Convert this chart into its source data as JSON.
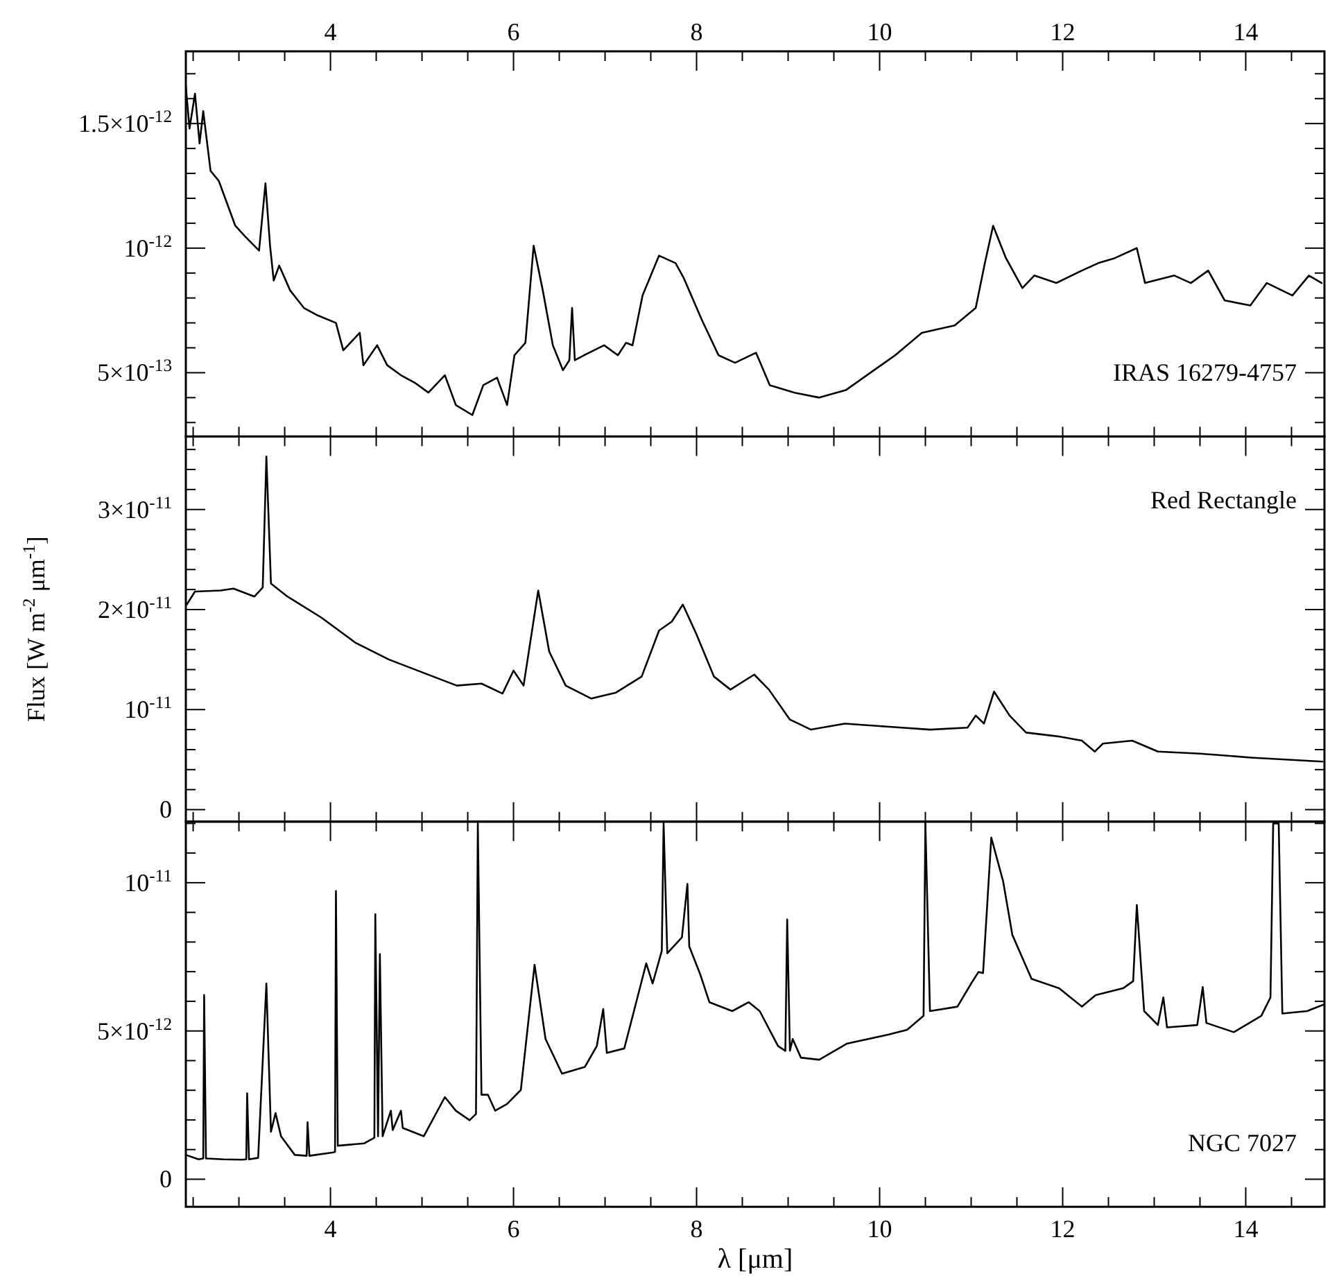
{
  "chart_data": [
    {
      "type": "line",
      "tick_labels": "y",
      "xlim": [
        2.42,
        14.86
      ],
      "ylim": [
        2.44e-13,
        1.79e-12
      ],
      "xticks": [
        {
          "value": 2.5,
          "label": null
        },
        {
          "value": 3,
          "label": null
        },
        {
          "value": 3.5,
          "label": null
        },
        {
          "value": 4,
          "label": null
        },
        {
          "value": 4.5,
          "label": null
        },
        {
          "value": 5,
          "label": null
        },
        {
          "value": 5.5,
          "label": null
        },
        {
          "value": 6,
          "label": null
        },
        {
          "value": 6.5,
          "label": null
        },
        {
          "value": 7,
          "label": null
        },
        {
          "value": 7.5,
          "label": null
        },
        {
          "value": 8,
          "label": null
        },
        {
          "value": 8.5,
          "label": null
        },
        {
          "value": 9,
          "label": null
        },
        {
          "value": 9.5,
          "label": null
        },
        {
          "value": 10,
          "label": null
        },
        {
          "value": 10.5,
          "label": null
        },
        {
          "value": 11,
          "label": null
        },
        {
          "value": 11.5,
          "label": null
        },
        {
          "value": 12,
          "label": null
        },
        {
          "value": 12.5,
          "label": null
        },
        {
          "value": 13,
          "label": null
        },
        {
          "value": 13.5,
          "label": null
        },
        {
          "value": 14,
          "label": null
        },
        {
          "value": 14.5,
          "label": null
        }
      ],
      "x2lim": [
        2.42,
        14.86
      ],
      "x2ticks": [
        {
          "value": 2.5,
          "label": null
        },
        {
          "value": 3,
          "label": null
        },
        {
          "value": 3.5,
          "label": null
        },
        4,
        {
          "value": 4.5,
          "label": null
        },
        {
          "value": 5,
          "label": null
        },
        {
          "value": 5.5,
          "label": null
        },
        6,
        {
          "value": 6.5,
          "label": null
        },
        {
          "value": 7,
          "label": null
        },
        {
          "value": 7.5,
          "label": null
        },
        8,
        {
          "value": 8.5,
          "label": null
        },
        {
          "value": 9,
          "label": null
        },
        {
          "value": 9.5,
          "label": null
        },
        10,
        {
          "value": 10.5,
          "label": null
        },
        {
          "value": 11,
          "label": null
        },
        {
          "value": 11.5,
          "label": null
        },
        12,
        {
          "value": 12.5,
          "label": null
        },
        {
          "value": 13,
          "label": null
        },
        {
          "value": 13.5,
          "label": null
        },
        14,
        {
          "value": 14.5,
          "label": null
        }
      ],
      "yticks": [
        {
          "value": 3e-13,
          "label": null
        },
        {
          "value": 4e-13,
          "label": null
        },
        {
          "value": 5e-13,
          "label": "5×10$^{-13}$"
        },
        {
          "value": 6e-13,
          "label": null
        },
        {
          "value": 7e-13,
          "label": null
        },
        {
          "value": 8e-13,
          "label": null
        },
        {
          "value": 9e-13,
          "label": null
        },
        {
          "value": 1e-12,
          "label": "10$^{-12}$"
        },
        {
          "value": 1.1e-12,
          "label": null
        },
        {
          "value": 1.2e-12,
          "label": null
        },
        {
          "value": 1.3e-12,
          "label": null
        },
        {
          "value": 1.4e-12,
          "label": null
        },
        {
          "value": 1.5e-12,
          "label": "1.5×10$^{-12}$"
        },
        {
          "value": 1.6e-12,
          "label": null
        },
        {
          "value": 1.7e-12,
          "label": null
        }
      ],
      "series": [
        {
          "name": "IRAS 16279-4757",
          "color": "#000000",
          "x": [
            2.42,
            2.46,
            2.52,
            2.57,
            2.61,
            2.69,
            2.78,
            2.85,
            2.96,
            3.06,
            3.22,
            3.29,
            3.34,
            3.38,
            3.44,
            3.56,
            3.71,
            3.86,
            4.06,
            4.14,
            4.32,
            4.36,
            4.51,
            4.62,
            4.77,
            4.92,
            5.07,
            5.25,
            5.37,
            5.55,
            5.67,
            5.82,
            5.93,
            6.01,
            6.13,
            6.22,
            6.32,
            6.43,
            6.54,
            6.61,
            6.64,
            6.67,
            6.77,
            6.99,
            7.14,
            7.23,
            7.3,
            7.41,
            7.59,
            7.77,
            7.86,
            8.06,
            8.24,
            8.42,
            8.65,
            8.8,
            9.07,
            9.34,
            9.63,
            9.9,
            10.17,
            10.46,
            10.82,
            11.05,
            11.15,
            11.24,
            11.38,
            11.56,
            11.69,
            11.93,
            12.21,
            12.39,
            12.57,
            12.81,
            12.9,
            13.22,
            13.4,
            13.59,
            13.77,
            14.05,
            14.23,
            14.51,
            14.69,
            14.83
          ],
          "values": [
            1.65e-12,
            1.48e-12,
            1.62e-12,
            1.42e-12,
            1.55e-12,
            1.31e-12,
            1.27e-12,
            1.2e-12,
            1.09e-12,
            1.05e-12,
            9.9e-13,
            1.26e-12,
            1.01e-12,
            8.7e-13,
            9.3e-13,
            8.3e-13,
            7.6e-13,
            7.3e-13,
            7e-13,
            5.9e-13,
            6.6e-13,
            5.3e-13,
            6.1e-13,
            5.3e-13,
            4.9e-13,
            4.6e-13,
            4.2e-13,
            4.9e-13,
            3.7e-13,
            3.3e-13,
            4.5e-13,
            4.8e-13,
            3.7e-13,
            5.7e-13,
            6.2e-13,
            1.01e-12,
            8.3e-13,
            6.1e-13,
            5.1e-13,
            5.5e-13,
            7.6e-13,
            5.5e-13,
            5.7e-13,
            6.1e-13,
            5.7e-13,
            6.2e-13,
            6.1e-13,
            8.1e-13,
            9.7e-13,
            9.4e-13,
            8.8e-13,
            7.1e-13,
            5.7e-13,
            5.4e-13,
            5.8e-13,
            4.5e-13,
            4.2e-13,
            4e-13,
            4.3e-13,
            5e-13,
            5.7e-13,
            6.6e-13,
            6.9e-13,
            7.6e-13,
            9.4e-13,
            1.09e-12,
            9.6e-13,
            8.4e-13,
            8.9e-13,
            8.6e-13,
            9.1e-13,
            9.4e-13,
            9.6e-13,
            1e-12,
            8.6e-13,
            8.9e-13,
            8.6e-13,
            9.1e-13,
            7.9e-13,
            7.7e-13,
            8.6e-13,
            8.1e-13,
            8.9e-13,
            8.6e-13
          ]
        }
      ]
    },
    {
      "type": "line",
      "tick_labels": "y",
      "ylabel": "Flux [W m$^{-2}$ μm$^{-1}$]",
      "xlim": [
        2.42,
        14.86
      ],
      "ylim": [
        -1.2e-12,
        3.73e-11
      ],
      "xticks": [
        {
          "value": 2.5,
          "label": null
        },
        {
          "value": 3,
          "label": null
        },
        {
          "value": 3.5,
          "label": null
        },
        4,
        {
          "value": 4.5,
          "label": null
        },
        {
          "value": 5,
          "label": null
        },
        {
          "value": 5.5,
          "label": null
        },
        6,
        {
          "value": 6.5,
          "label": null
        },
        {
          "value": 7,
          "label": null
        },
        {
          "value": 7.5,
          "label": null
        },
        8,
        {
          "value": 8.5,
          "label": null
        },
        {
          "value": 9,
          "label": null
        },
        {
          "value": 9.5,
          "label": null
        },
        10,
        {
          "value": 10.5,
          "label": null
        },
        {
          "value": 11,
          "label": null
        },
        {
          "value": 11.5,
          "label": null
        },
        12,
        {
          "value": 12.5,
          "label": null
        },
        {
          "value": 13,
          "label": null
        },
        {
          "value": 13.5,
          "label": null
        },
        14,
        {
          "value": 14.5,
          "label": null
        }
      ],
      "yticks": [
        0,
        {
          "value": 2e-12,
          "label": null
        },
        {
          "value": 4e-12,
          "label": null
        },
        {
          "value": 6e-12,
          "label": null
        },
        {
          "value": 8e-12,
          "label": null
        },
        {
          "value": 1e-11,
          "label": "10$^{-11}$"
        },
        {
          "value": 1.2e-11,
          "label": null
        },
        {
          "value": 1.4e-11,
          "label": null
        },
        {
          "value": 1.6e-11,
          "label": null
        },
        {
          "value": 1.8e-11,
          "label": null
        },
        {
          "value": 2e-11,
          "label": "2×10$^{-11}$"
        },
        {
          "value": 2.2e-11,
          "label": null
        },
        {
          "value": 2.4e-11,
          "label": null
        },
        {
          "value": 2.6e-11,
          "label": null
        },
        {
          "value": 2.8e-11,
          "label": null
        },
        {
          "value": 3e-11,
          "label": "3×10$^{-11}$"
        },
        {
          "value": 3.2e-11,
          "label": null
        },
        {
          "value": 3.4e-11,
          "label": null
        },
        {
          "value": 3.6e-11,
          "label": null
        }
      ],
      "series": [
        {
          "name": "Red Rectangle",
          "color": "#000000",
          "x": [
            2.43,
            2.52,
            2.8,
            2.94,
            3.17,
            3.26,
            3.3,
            3.35,
            3.53,
            3.9,
            4.27,
            4.64,
            5.01,
            5.38,
            5.65,
            5.88,
            6.0,
            6.11,
            6.27,
            6.39,
            6.57,
            6.85,
            7.12,
            7.4,
            7.59,
            7.73,
            7.85,
            8.0,
            8.19,
            8.37,
            8.63,
            8.79,
            9.02,
            9.25,
            9.62,
            10.08,
            10.55,
            10.96,
            11.05,
            11.14,
            11.25,
            11.42,
            11.6,
            11.97,
            12.21,
            12.35,
            12.44,
            12.76,
            13.04,
            13.5,
            14.06,
            14.84
          ],
          "values": [
            2.05e-11,
            2.18e-11,
            2.19e-11,
            2.21e-11,
            2.13e-11,
            2.22e-11,
            3.53e-11,
            2.26e-11,
            2.13e-11,
            1.92e-11,
            1.67e-11,
            1.5e-11,
            1.37e-11,
            1.24e-11,
            1.26e-11,
            1.16e-11,
            1.39e-11,
            1.24e-11,
            2.19e-11,
            1.58e-11,
            1.24e-11,
            1.11e-11,
            1.17e-11,
            1.33e-11,
            1.79e-11,
            1.88e-11,
            2.05e-11,
            1.75e-11,
            1.33e-11,
            1.2e-11,
            1.35e-11,
            1.2e-11,
            9e-12,
            8e-12,
            8.6e-12,
            8.3e-12,
            8e-12,
            8.2e-12,
            9.4e-12,
            8.6e-12,
            1.18e-11,
            9.4e-12,
            7.7e-12,
            7.3e-12,
            6.9e-12,
            5.8e-12,
            6.6e-12,
            6.9e-12,
            5.8e-12,
            5.6e-12,
            5.2e-12,
            4.8e-12
          ]
        }
      ]
    },
    {
      "type": "line",
      "xlabel": "λ [μm]",
      "xlim": [
        2.42,
        14.86
      ],
      "ylim": [
        -9.3e-13,
        1.206e-11
      ],
      "xticks": [
        {
          "value": 2.5,
          "label": null
        },
        {
          "value": 3,
          "label": null
        },
        {
          "value": 3.5,
          "label": null
        },
        4,
        {
          "value": 4.5,
          "label": null
        },
        {
          "value": 5,
          "label": null
        },
        {
          "value": 5.5,
          "label": null
        },
        6,
        {
          "value": 6.5,
          "label": null
        },
        {
          "value": 7,
          "label": null
        },
        {
          "value": 7.5,
          "label": null
        },
        8,
        {
          "value": 8.5,
          "label": null
        },
        {
          "value": 9,
          "label": null
        },
        {
          "value": 9.5,
          "label": null
        },
        10,
        {
          "value": 10.5,
          "label": null
        },
        {
          "value": 11,
          "label": null
        },
        {
          "value": 11.5,
          "label": null
        },
        12,
        {
          "value": 12.5,
          "label": null
        },
        {
          "value": 13,
          "label": null
        },
        {
          "value": 13.5,
          "label": null
        },
        14,
        {
          "value": 14.5,
          "label": null
        }
      ],
      "yticks": [
        0,
        {
          "value": 1e-12,
          "label": null
        },
        {
          "value": 2e-12,
          "label": null
        },
        {
          "value": 3e-12,
          "label": null
        },
        {
          "value": 4e-12,
          "label": null
        },
        {
          "value": 5e-12,
          "label": "5×10$^{-12}$"
        },
        {
          "value": 6e-12,
          "label": null
        },
        {
          "value": 7e-12,
          "label": null
        },
        {
          "value": 8e-12,
          "label": null
        },
        {
          "value": 9e-12,
          "label": null
        },
        {
          "value": 1e-11,
          "label": "10$^{-11}$"
        },
        {
          "value": 1.1e-11,
          "label": null
        },
        {
          "value": 1.2e-11,
          "label": null
        }
      ],
      "series": [
        {
          "name": "NGC 7027",
          "color": "#000000",
          "x": [
            2.42,
            2.56,
            2.61,
            2.62,
            2.64,
            2.83,
            3.03,
            3.08,
            3.09,
            3.11,
            3.21,
            3.3,
            3.35,
            3.4,
            3.46,
            3.61,
            3.74,
            3.75,
            3.77,
            4.02,
            4.05,
            4.06,
            4.08,
            4.37,
            4.48,
            4.49,
            4.52,
            4.54,
            4.57,
            4.66,
            4.68,
            4.77,
            4.79,
            5.02,
            5.25,
            5.37,
            5.52,
            5.59,
            5.61,
            5.65,
            5.72,
            5.8,
            5.93,
            6.08,
            6.23,
            6.35,
            6.53,
            6.78,
            6.91,
            6.98,
            7.02,
            7.21,
            7.31,
            7.45,
            7.52,
            7.62,
            7.64,
            7.68,
            7.84,
            7.9,
            7.92,
            8.04,
            8.14,
            8.39,
            8.57,
            8.69,
            8.89,
            8.97,
            8.99,
            9.02,
            9.05,
            9.14,
            9.34,
            9.64,
            10.1,
            10.3,
            10.48,
            10.5,
            10.55,
            10.85,
            11.0,
            11.08,
            11.13,
            11.22,
            11.35,
            11.45,
            11.66,
            11.96,
            12.21,
            12.36,
            12.66,
            12.77,
            12.81,
            12.89,
            13.04,
            13.1,
            13.14,
            13.47,
            13.53,
            13.57,
            13.87,
            14.17,
            14.27,
            14.3,
            14.36,
            14.4,
            14.67,
            14.86
          ],
          "values": [
            8.2e-13,
            6.7e-13,
            7e-13,
            6.21e-12,
            7e-13,
            6.7e-13,
            6.6e-13,
            6.7e-13,
            2.9e-12,
            6.7e-13,
            7.2e-13,
            6.6e-12,
            1.6e-12,
            2.23e-12,
            1.45e-12,
            8.2e-13,
            7.9e-13,
            1.92e-12,
            7.9e-13,
            9e-13,
            9.2e-13,
            9.72e-12,
            1.13e-12,
            1.21e-12,
            1.4e-12,
            8.94e-12,
            1.45e-12,
            7.59e-12,
            1.45e-12,
            2.31e-12,
            1.66e-12,
            2.31e-12,
            1.73e-12,
            1.45e-12,
            2.77e-12,
            2.31e-12,
            1.99e-12,
            2.2e-12,
            1.2e-11,
            2.85e-12,
            2.85e-12,
            2.31e-12,
            2.54e-12,
            3.01e-12,
            7.23e-12,
            4.73e-12,
            3.56e-12,
            3.79e-12,
            4.49e-12,
            5.74e-12,
            4.26e-12,
            4.41e-12,
            5.6e-12,
            7.28e-12,
            6.6e-12,
            7.7e-12,
            1.2e-11,
            7.62e-12,
            8.16e-12,
            9.96e-12,
            7.85e-12,
            6.91e-12,
            5.97e-12,
            5.67e-12,
            5.97e-12,
            5.67e-12,
            4.49e-12,
            4.33e-12,
            8.76e-12,
            4.33e-12,
            4.73e-12,
            4.1e-12,
            4.03e-12,
            4.57e-12,
            4.88e-12,
            5.04e-12,
            5.51e-12,
            1.2e-11,
            5.67e-12,
            5.82e-12,
            6.6e-12,
            6.99e-12,
            6.95e-12,
            1.152e-11,
            1.004e-11,
            8.24e-12,
            6.76e-12,
            6.44e-12,
            5.82e-12,
            6.21e-12,
            6.44e-12,
            6.68e-12,
            9.25e-12,
            5.67e-12,
            5.2e-12,
            6.13e-12,
            5.12e-12,
            5.2e-12,
            6.48e-12,
            5.27e-12,
            4.96e-12,
            5.51e-12,
            6.13e-12,
            1.2e-11,
            1.2e-11,
            5.59e-12,
            5.67e-12,
            5.9e-12
          ]
        }
      ]
    }
  ]
}
